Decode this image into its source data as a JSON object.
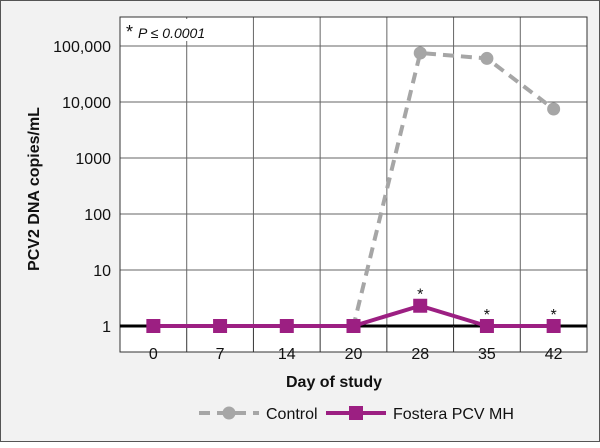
{
  "chart_data": {
    "type": "line",
    "note": "P ≤ 0.0001",
    "note_mark": "*",
    "xlabel": "Day of study",
    "ylabel": "PCV2 DNA copies/mL",
    "categories": [
      "0",
      "7",
      "14",
      "20",
      "28",
      "35",
      "42"
    ],
    "y_scale": "log",
    "ylim": [
      1,
      100000
    ],
    "y_ticks": [
      {
        "value": 1,
        "label": "1"
      },
      {
        "value": 10,
        "label": "10"
      },
      {
        "value": 100,
        "label": "100"
      },
      {
        "value": 1000,
        "label": "1000"
      },
      {
        "value": 10000,
        "label": "10,000"
      },
      {
        "value": 100000,
        "label": "100,000"
      }
    ],
    "grid": true,
    "legend_position": "bottom",
    "series": [
      {
        "name": "Control",
        "color": "#a6a6a6",
        "style": "dashed",
        "marker": "circle",
        "values": [
          1,
          1,
          1,
          1,
          75000,
          60000,
          7500
        ]
      },
      {
        "name": "Fostera PCV MH",
        "color": "#9c1f82",
        "style": "solid",
        "marker": "square",
        "values": [
          1,
          1,
          1,
          1,
          2.3,
          1,
          1
        ],
        "significance_marks": [
          "",
          "",
          "",
          "",
          "*",
          "*",
          "*"
        ]
      }
    ]
  }
}
